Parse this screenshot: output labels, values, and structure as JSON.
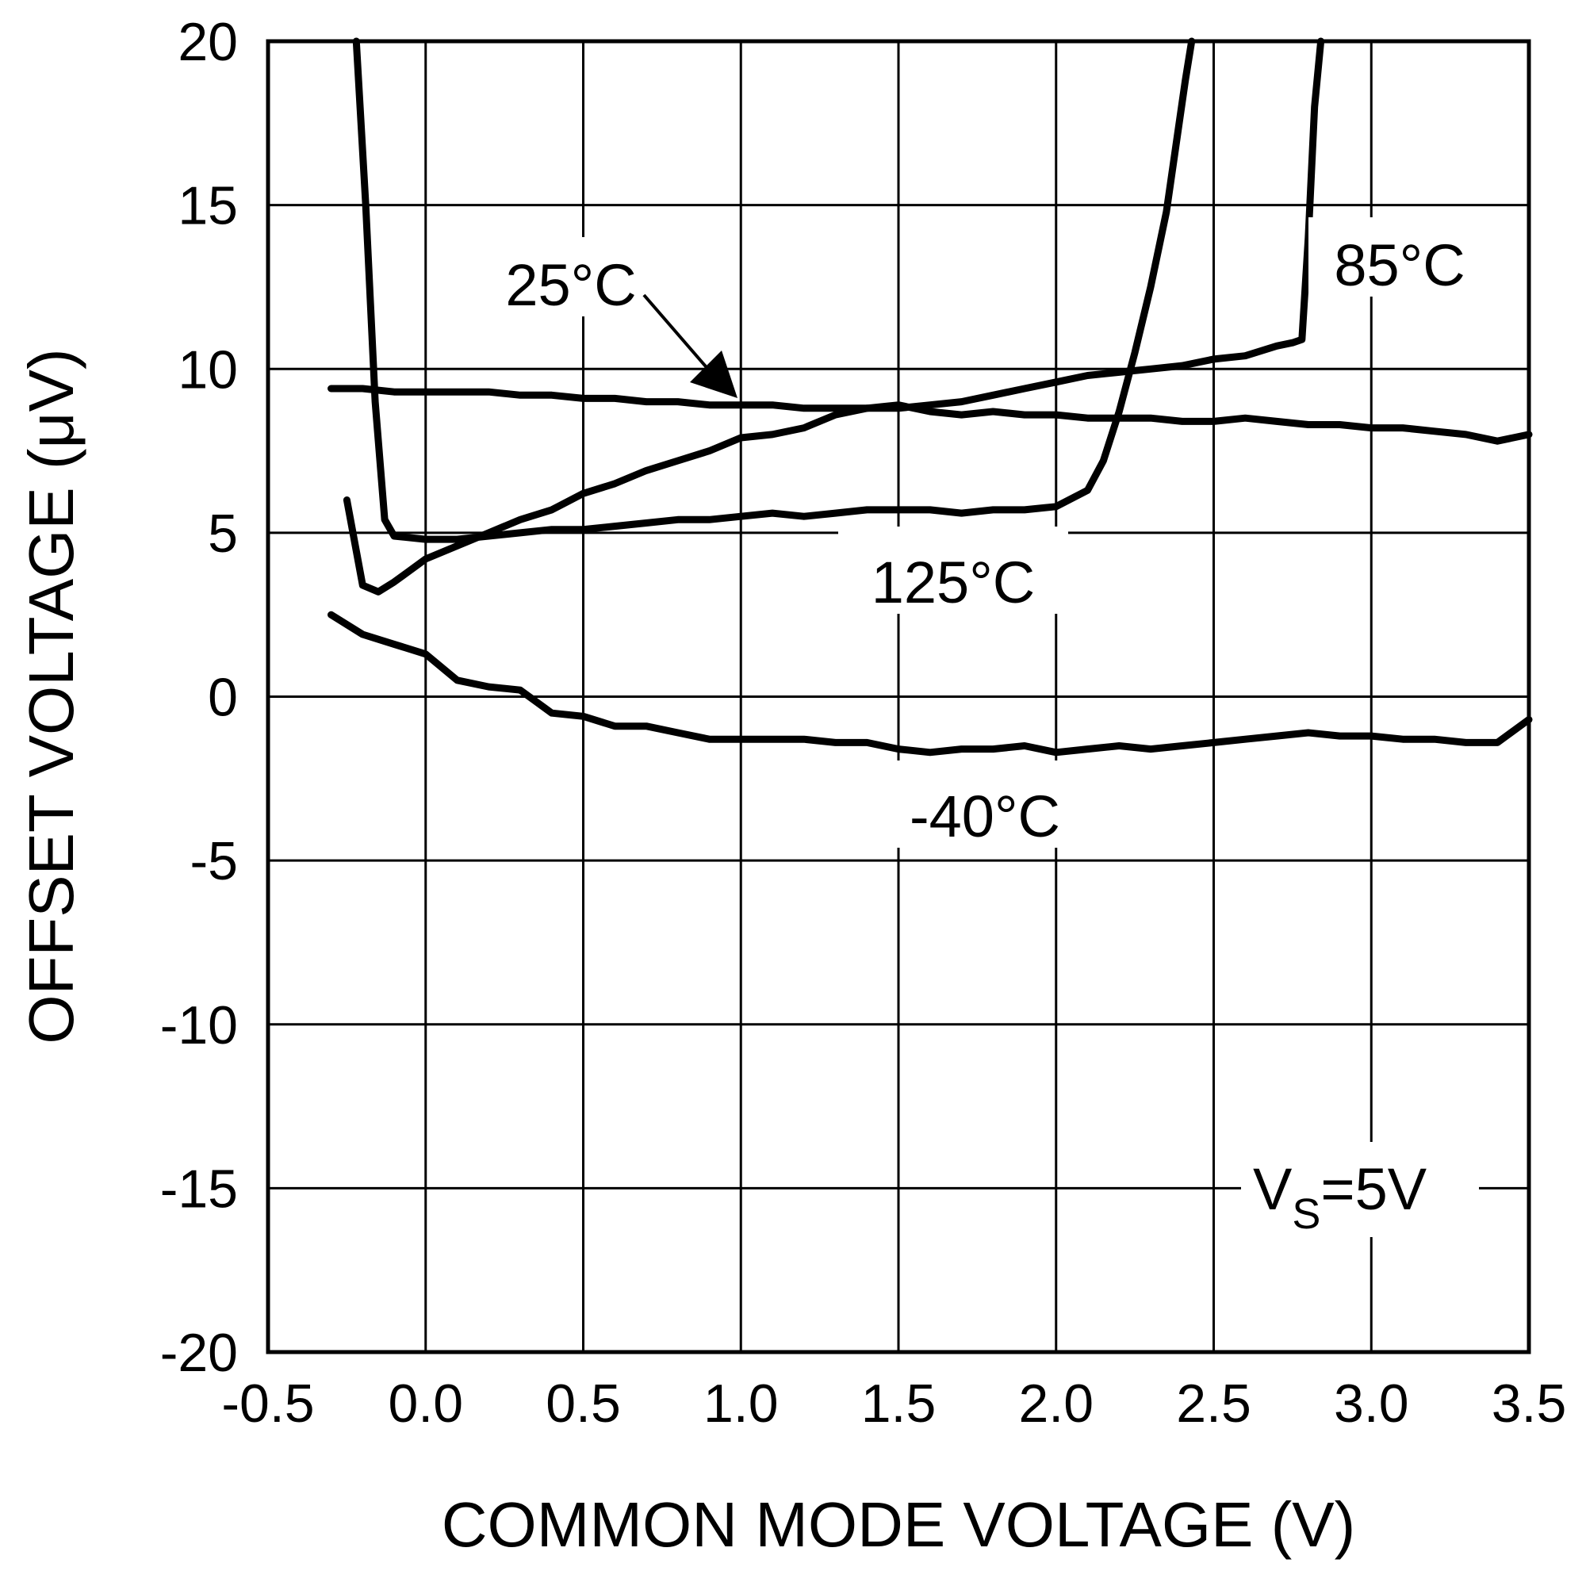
{
  "chart_data": {
    "type": "line",
    "xlabel": "COMMON MODE VOLTAGE (V)",
    "ylabel": "OFFSET VOLTAGE (μV)",
    "xlim": [
      -0.5,
      3.5
    ],
    "ylim": [
      -20,
      20
    ],
    "xticks": [
      "-0.5",
      "0.0",
      "0.5",
      "1.0",
      "1.5",
      "2.0",
      "2.5",
      "3.0",
      "3.5"
    ],
    "yticks": [
      "20",
      "15",
      "10",
      "5",
      "0",
      "-5",
      "-10",
      "-15",
      "-20"
    ],
    "grid": true,
    "annotations": {
      "t25": "25°C",
      "t85": "85°C",
      "t125": "125°C",
      "tm40": "-40°C",
      "vs_main": "V",
      "vs_sub": "S",
      "vs_rest": "=5V"
    },
    "series": [
      {
        "label_key": "t25",
        "x": [
          -0.3,
          -0.2,
          -0.1,
          0.0,
          0.1,
          0.2,
          0.3,
          0.4,
          0.5,
          0.6,
          0.7,
          0.8,
          0.9,
          1.0,
          1.1,
          1.2,
          1.3,
          1.4,
          1.5,
          1.6,
          1.7,
          1.8,
          1.9,
          2.0,
          2.1,
          2.2,
          2.3,
          2.4,
          2.5,
          2.6,
          2.7,
          2.8,
          2.9,
          3.0,
          3.1,
          3.2,
          3.3,
          3.4,
          3.5
        ],
        "y": [
          9.4,
          9.4,
          9.3,
          9.3,
          9.3,
          9.3,
          9.2,
          9.2,
          9.1,
          9.1,
          9.0,
          9.0,
          8.9,
          8.9,
          8.9,
          8.8,
          8.8,
          8.8,
          8.9,
          8.7,
          8.6,
          8.7,
          8.6,
          8.6,
          8.5,
          8.5,
          8.5,
          8.4,
          8.4,
          8.5,
          8.4,
          8.3,
          8.3,
          8.2,
          8.2,
          8.1,
          8.0,
          7.8,
          8.0
        ]
      },
      {
        "label_key": "t85",
        "x": [
          -0.25,
          -0.2,
          -0.15,
          -0.1,
          0.0,
          0.1,
          0.2,
          0.3,
          0.4,
          0.5,
          0.6,
          0.7,
          0.8,
          0.9,
          1.0,
          1.1,
          1.2,
          1.3,
          1.4,
          1.5,
          1.6,
          1.7,
          1.8,
          1.9,
          2.0,
          2.1,
          2.2,
          2.3,
          2.4,
          2.5,
          2.6,
          2.7,
          2.75,
          2.78,
          2.8,
          2.82,
          2.84
        ],
        "y": [
          6.0,
          3.4,
          3.2,
          3.5,
          4.2,
          4.6,
          5.0,
          5.4,
          5.7,
          6.2,
          6.5,
          6.9,
          7.2,
          7.5,
          7.9,
          8.0,
          8.2,
          8.6,
          8.8,
          8.8,
          8.9,
          9.0,
          9.2,
          9.4,
          9.6,
          9.8,
          9.9,
          10.0,
          10.1,
          10.3,
          10.4,
          10.7,
          10.8,
          10.9,
          14.0,
          18.0,
          20.0
        ]
      },
      {
        "label_key": "t125",
        "x": [
          -0.22,
          -0.19,
          -0.16,
          -0.13,
          -0.1,
          0.0,
          0.1,
          0.2,
          0.3,
          0.4,
          0.5,
          0.6,
          0.7,
          0.8,
          0.9,
          1.0,
          1.1,
          1.2,
          1.3,
          1.4,
          1.5,
          1.6,
          1.7,
          1.8,
          1.9,
          2.0,
          2.1,
          2.15,
          2.2,
          2.25,
          2.3,
          2.35,
          2.38,
          2.41,
          2.43
        ],
        "y": [
          20.0,
          15.0,
          9.0,
          5.4,
          4.9,
          4.8,
          4.8,
          4.9,
          5.0,
          5.1,
          5.1,
          5.2,
          5.3,
          5.4,
          5.4,
          5.5,
          5.6,
          5.5,
          5.6,
          5.7,
          5.7,
          5.7,
          5.6,
          5.7,
          5.7,
          5.8,
          6.3,
          7.2,
          8.7,
          10.5,
          12.5,
          14.8,
          16.8,
          18.8,
          20.0
        ]
      },
      {
        "label_key": "tm40",
        "x": [
          -0.3,
          -0.2,
          -0.1,
          0.0,
          0.1,
          0.2,
          0.3,
          0.4,
          0.5,
          0.6,
          0.7,
          0.8,
          0.9,
          1.0,
          1.1,
          1.2,
          1.3,
          1.4,
          1.5,
          1.6,
          1.7,
          1.8,
          1.9,
          2.0,
          2.1,
          2.2,
          2.3,
          2.4,
          2.5,
          2.6,
          2.7,
          2.8,
          2.9,
          3.0,
          3.1,
          3.2,
          3.3,
          3.4,
          3.5
        ],
        "y": [
          2.5,
          1.9,
          1.6,
          1.3,
          0.5,
          0.3,
          0.2,
          -0.5,
          -0.6,
          -0.9,
          -0.9,
          -1.1,
          -1.3,
          -1.3,
          -1.3,
          -1.3,
          -1.4,
          -1.4,
          -1.6,
          -1.7,
          -1.6,
          -1.6,
          -1.5,
          -1.7,
          -1.6,
          -1.5,
          -1.6,
          -1.5,
          -1.4,
          -1.3,
          -1.2,
          -1.1,
          -1.2,
          -1.2,
          -1.3,
          -1.3,
          -1.4,
          -1.4,
          -0.7
        ]
      }
    ]
  }
}
